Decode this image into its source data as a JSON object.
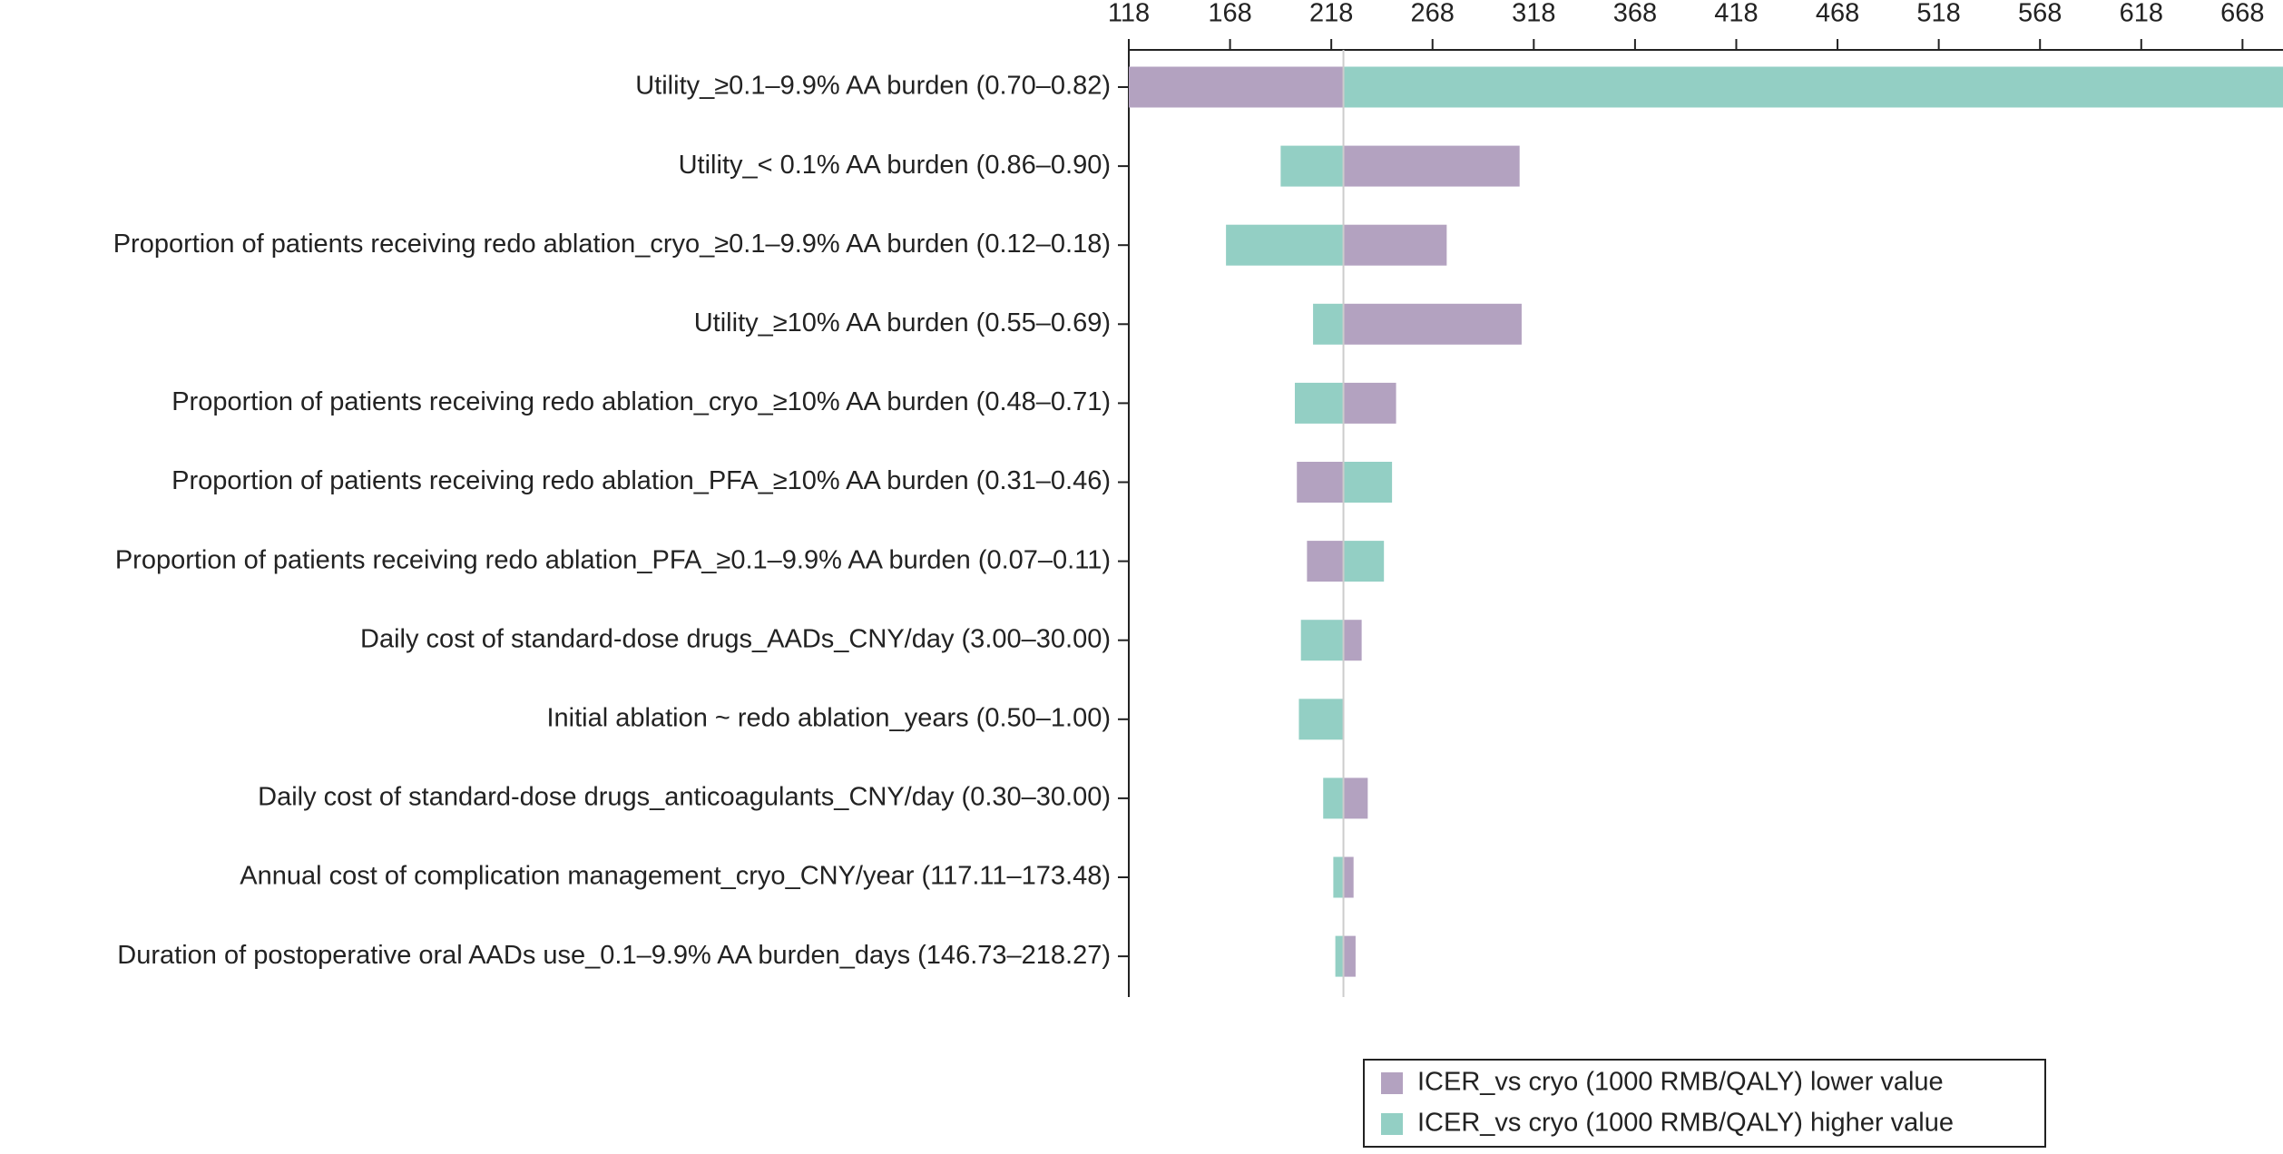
{
  "chart_data": {
    "type": "tornado",
    "categories": [
      "Utility_≥0.1–9.9% AA burden (0.70–0.82)",
      "Utility_< 0.1% AA burden (0.86–0.90)",
      "Proportion of patients receiving redo ablation_cryo_≥0.1–9.9% AA burden (0.12–0.18)",
      "Utility_≥10% AA burden (0.55–0.69)",
      "Proportion of patients receiving redo ablation_cryo_≥10% AA burden (0.48–0.71)",
      "Proportion of patients receiving redo ablation_PFA_≥10% AA burden (0.31–0.46)",
      "Proportion of patients receiving redo ablation_PFA_≥0.1–9.9% AA burden (0.07–0.11)",
      "Daily cost of standard-dose drugs_AADs_CNY/day (3.00–30.00)",
      "Initial ablation ~ redo ablation_years (0.50–1.00)",
      "Daily cost of standard-dose drugs_anticoagulants_CNY/day (0.30–30.00)",
      "Annual cost of complication management_cryo_CNY/year (117.11–173.48)",
      "Duration of postoperative oral AADs use_0.1–9.9% AA burden_days (146.73–218.27)"
    ],
    "base_value": 224,
    "series": [
      {
        "name": "ICER_vs cryo (1000 RMB/QALY) lower value",
        "color": "#b3a2c0",
        "values": [
          118,
          311,
          275,
          312,
          250,
          201,
          206,
          233,
          224,
          236,
          229,
          230
        ]
      },
      {
        "name": "ICER_vs cryo (1000 RMB/QALY) higher value",
        "color": "#93cfc4",
        "values": [
          688,
          193,
          166,
          209,
          200,
          248,
          244,
          203,
          202,
          214,
          219,
          220
        ]
      }
    ],
    "xlim": [
      118,
      688
    ],
    "xticks": [
      118,
      168,
      218,
      268,
      318,
      368,
      418,
      468,
      518,
      568,
      618,
      668
    ]
  }
}
